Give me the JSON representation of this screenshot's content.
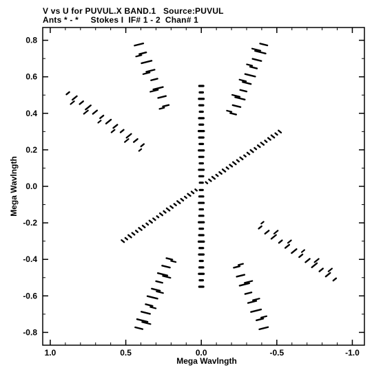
{
  "chart_data": {
    "type": "scatter",
    "title_line1": "V vs U for PUVUL.X BAND.1   Source:PUVUL",
    "title_line2": "Ants * - *     Stokes I  IF# 1 - 2  Chan# 1",
    "xlabel": "Mega Wavlngth",
    "ylabel": "Mega Wavlngth",
    "xlim": [
      1.05,
      -1.08
    ],
    "ylim": [
      -0.87,
      0.87
    ],
    "x_ticks": [
      1.0,
      0.5,
      0.0,
      -0.5,
      -1.0
    ],
    "x_tick_labels": [
      "1.0",
      "0.5",
      "0.0",
      "-0.5",
      "-1.0"
    ],
    "y_ticks": [
      0.8,
      0.6,
      0.4,
      0.2,
      0.0,
      -0.2,
      -0.4,
      -0.6,
      -0.8
    ],
    "y_tick_labels": [
      "0.8",
      "0.6",
      "0.4",
      "0.2",
      "0.0",
      "-0.2",
      "-0.4",
      "-0.6",
      "-0.8"
    ],
    "grid": false,
    "marker_color": "#000000",
    "track_families": [
      {
        "name": "",
        "center_u": 0.0,
        "center_v": 0.0,
        "angle_deg": 90,
        "r_min": 0.02,
        "r_max": 0.55,
        "n_tracks": 16,
        "segment_length": 0.03
      },
      {
        "name": "",
        "center_u": 0.0,
        "center_v": 0.0,
        "angle_deg": 30,
        "r_min": 0.04,
        "r_max": 0.6,
        "n_tracks": 22,
        "segment_length": 0.035
      },
      {
        "name": "",
        "center_u": 0.0,
        "center_v": 0.0,
        "angle_deg": 150,
        "r_min": 0.45,
        "r_max": 1.02,
        "n_tracks": 12,
        "segment_length": 0.06
      },
      {
        "name": "",
        "center_u": 0.0,
        "center_v": 0.0,
        "angle_deg": 62,
        "r_min": 0.45,
        "r_max": 0.88,
        "n_tracks": 10,
        "segment_length": 0.07
      },
      {
        "name": "",
        "center_u": 0.0,
        "center_v": 0.0,
        "angle_deg": 118,
        "r_min": 0.5,
        "r_max": 0.88,
        "n_tracks": 8,
        "segment_length": 0.07
      }
    ]
  }
}
